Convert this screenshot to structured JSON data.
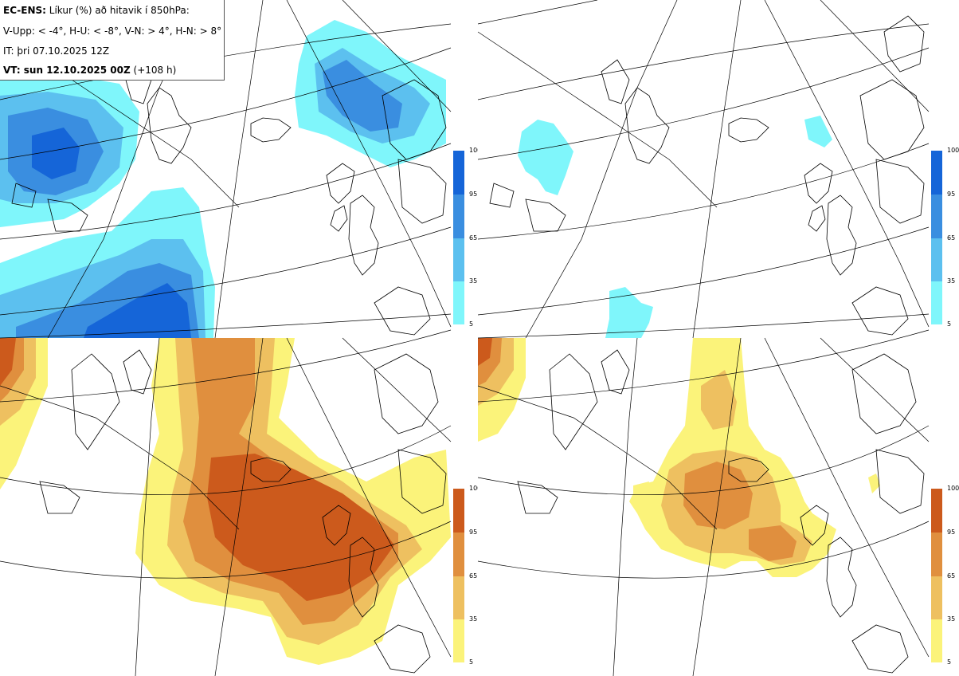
{
  "header": {
    "model_label": "EC-ENS:",
    "title_text": "Líkur (%) að hitavik í 850hPa:",
    "thresholds": "V-Upp: < -4°, H-U: < -8°, V-N: > 4°, H-N: > 8°",
    "init_time": "IT: þri 07.10.2025 12Z",
    "valid_label": "VT: sun 12.10.2025 00Z",
    "valid_suffix": "(+108 h)"
  },
  "panels": [
    {
      "id": "V-Upp",
      "position": "top-left",
      "palette": "cold"
    },
    {
      "id": "H-U",
      "position": "top-right",
      "palette": "cold"
    },
    {
      "id": "V-N",
      "position": "bottom-left",
      "palette": "warm"
    },
    {
      "id": "H-N",
      "position": "bottom-right",
      "palette": "warm"
    }
  ],
  "colorbar": {
    "ticks": [
      "100",
      "95",
      "65",
      "35",
      "5"
    ],
    "cold_colors": [
      "#1565d8",
      "#3a8ee0",
      "#5cc0ef",
      "#7ff6fb"
    ],
    "warm_colors": [
      "#cc5a1c",
      "#e08f3e",
      "#eec060",
      "#fbf37a"
    ]
  },
  "map_colors": {
    "coast": "#000000",
    "grid": "#000000",
    "background": "#ffffff"
  }
}
